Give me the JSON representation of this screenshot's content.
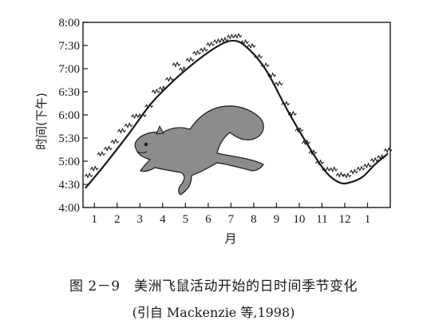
{
  "chart_data": {
    "type": "line",
    "ylabel": "时间(下午)",
    "xlabel": "月",
    "x_ticks": [
      "1",
      "2",
      "3",
      "4",
      "5",
      "6",
      "7",
      "8",
      "9",
      "10",
      "11",
      "12",
      "1"
    ],
    "y_ticks": [
      "4:00",
      "4:30",
      "5:00",
      "5:30",
      "6:00",
      "6:30",
      "7:00",
      "7:30",
      "8:00"
    ],
    "ylim": [
      "4:00",
      "8:00"
    ],
    "xlim": [
      0.5,
      14
    ],
    "grid": false,
    "legend": "none",
    "series": [
      {
        "kind": "fitted-curve",
        "points": [
          [
            0.6,
            "4:25"
          ],
          [
            1.5,
            "4:57"
          ],
          [
            2.5,
            "5:35"
          ],
          [
            3.5,
            "6:15"
          ],
          [
            4.5,
            "6:45"
          ],
          [
            5.5,
            "7:10"
          ],
          [
            6.3,
            "7:27"
          ],
          [
            7.0,
            "7:36"
          ],
          [
            7.6,
            "7:30"
          ],
          [
            8.5,
            "7:00"
          ],
          [
            9.5,
            "6:05"
          ],
          [
            10.5,
            "5:15"
          ],
          [
            11.2,
            "4:45"
          ],
          [
            11.8,
            "4:32"
          ],
          [
            12.3,
            "4:33"
          ],
          [
            12.8,
            "4:40"
          ],
          [
            13.3,
            "4:55"
          ],
          [
            13.9,
            "5:10"
          ]
        ]
      },
      {
        "kind": "observations",
        "points": [
          [
            0.75,
            "4:40"
          ],
          [
            1.0,
            "4:50"
          ],
          [
            1.3,
            "5:10"
          ],
          [
            1.6,
            "5:15"
          ],
          [
            1.9,
            "5:25"
          ],
          [
            2.2,
            "5:40"
          ],
          [
            2.5,
            "5:45"
          ],
          [
            2.8,
            "5:58"
          ],
          [
            3.1,
            "6:00"
          ],
          [
            3.4,
            "6:10"
          ],
          [
            3.7,
            "6:30"
          ],
          [
            4.0,
            "6:35"
          ],
          [
            4.3,
            "6:45"
          ],
          [
            4.6,
            "7:05"
          ],
          [
            4.9,
            "7:00"
          ],
          [
            5.2,
            "7:10"
          ],
          [
            5.5,
            "7:20"
          ],
          [
            5.8,
            "7:25"
          ],
          [
            6.1,
            "7:30"
          ],
          [
            6.4,
            "7:35"
          ],
          [
            6.7,
            "7:38"
          ],
          [
            7.0,
            "7:40"
          ],
          [
            7.3,
            "7:42"
          ],
          [
            7.6,
            "7:35"
          ],
          [
            7.9,
            "7:28"
          ],
          [
            8.2,
            "7:15"
          ],
          [
            8.5,
            "7:05"
          ],
          [
            8.8,
            "6:50"
          ],
          [
            9.1,
            "6:40"
          ],
          [
            9.4,
            "6:15"
          ],
          [
            9.7,
            "6:00"
          ],
          [
            10.0,
            "5:40"
          ],
          [
            10.3,
            "5:25"
          ],
          [
            10.6,
            "5:10"
          ],
          [
            10.9,
            "4:58"
          ],
          [
            11.2,
            "4:50"
          ],
          [
            11.5,
            "4:48"
          ],
          [
            11.8,
            "4:42"
          ],
          [
            12.1,
            "4:42"
          ],
          [
            12.4,
            "4:45"
          ],
          [
            12.7,
            "4:50"
          ],
          [
            13.0,
            "4:55"
          ],
          [
            13.3,
            "5:00"
          ],
          [
            13.6,
            "5:05"
          ],
          [
            13.9,
            "5:15"
          ]
        ]
      }
    ]
  },
  "caption": {
    "line1": "图 2－9　美洲飞鼠活动开始的日时间季节变化",
    "line2": "(引自 Mackenzie 等,1998)"
  },
  "colors": {
    "ink": "#1a1a1a",
    "squirrel_fill": "#8c8c8c"
  },
  "illustration": {
    "icon": "flying-squirrel-icon"
  }
}
